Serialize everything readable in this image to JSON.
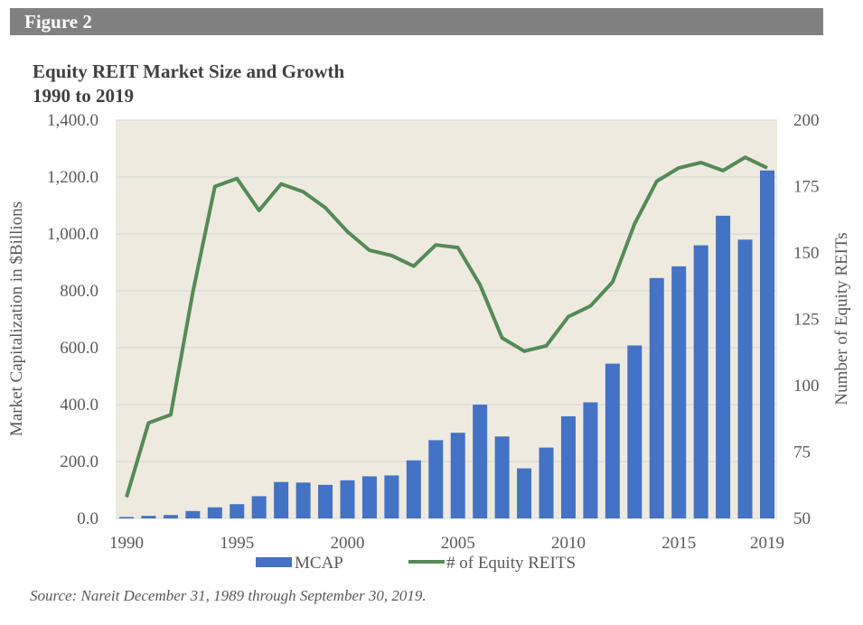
{
  "header": {
    "figure_label": "Figure 2"
  },
  "chart_data": {
    "type": "bar+line",
    "title": "Equity REIT Market Size and Growth",
    "subtitle": "1990 to 2019",
    "ylabel": "Market Capitalization in $Billions",
    "y2label": "Number of Equity REITs",
    "ylim": [
      0,
      1400
    ],
    "y2lim": [
      50,
      200
    ],
    "y_ticks": [
      "0.0",
      "200.0",
      "400.0",
      "600.0",
      "800.0",
      "1,000.0",
      "1,200.0",
      "1,400.0"
    ],
    "y2_ticks": [
      "50",
      "75",
      "100",
      "125",
      "150",
      "175",
      "200"
    ],
    "x_ticks": [
      "1990",
      "1995",
      "2000",
      "2005",
      "2010",
      "2015",
      "2019"
    ],
    "x": [
      1990,
      1991,
      1992,
      1993,
      1994,
      1995,
      1996,
      1997,
      1998,
      1999,
      2000,
      2001,
      2002,
      2003,
      2004,
      2005,
      2006,
      2007,
      2008,
      2009,
      2010,
      2011,
      2012,
      2013,
      2014,
      2015,
      2016,
      2017,
      2018,
      2019
    ],
    "series": [
      {
        "name": "MCAP",
        "kind": "bar",
        "axis": "left",
        "color": "#4472c4",
        "values": [
          5,
          9,
          12,
          26,
          39,
          50,
          78,
          128,
          126,
          118,
          134,
          148,
          151,
          204,
          275,
          301,
          400,
          288,
          176,
          249,
          359,
          408,
          544,
          608,
          845,
          886,
          960,
          1064,
          980,
          1223
        ]
      },
      {
        "name": "# of Equity REITS",
        "kind": "line",
        "axis": "right",
        "color": "#548a57",
        "values": [
          58,
          86,
          89,
          135,
          175,
          178,
          166,
          176,
          173,
          167,
          158,
          151,
          149,
          145,
          153,
          152,
          138,
          118,
          113,
          115,
          126,
          130,
          139,
          161,
          177,
          182,
          184,
          181,
          186,
          182
        ]
      }
    ],
    "grid": true,
    "legend": "bottom",
    "plot_background": "#eeeae0"
  },
  "footer": {
    "source": "Source: Nareit December 31, 1989 through September 30, 2019."
  }
}
